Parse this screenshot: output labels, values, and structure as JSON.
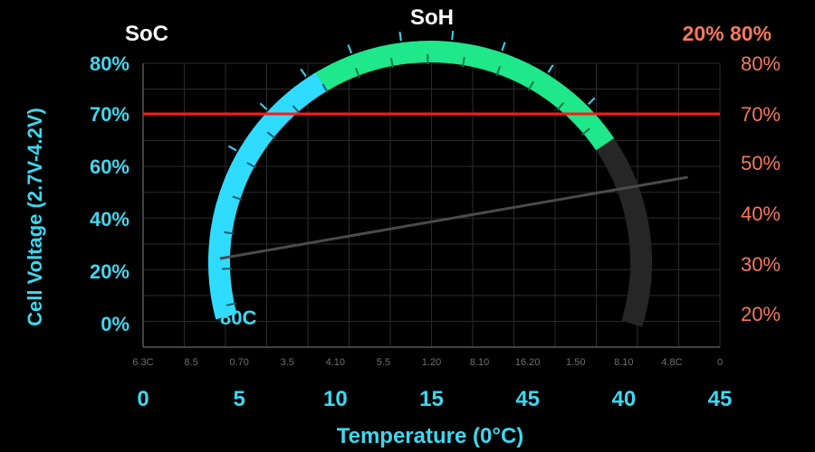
{
  "colors": {
    "background": "#000000",
    "grid": "#2b2b2b",
    "left_axis": "#3fd7ef",
    "right_axis": "#f47a5c",
    "arc_cyan": "#2fdcff",
    "arc_green": "#1ee88a",
    "arc_dark": "#262626",
    "threshold": "#ff1a1a",
    "trend": "#4a4a4a"
  },
  "chart_data": {
    "type": "line",
    "title": "SoH",
    "corner_labels": {
      "left": "SoC",
      "right": "20% 80%"
    },
    "gauge_label": "80C",
    "xlabel": "Temperature (0°C)",
    "ylabel": "Cell Voltage (2.7V-4.2V)",
    "x_tick_labels": [
      "0",
      "5",
      "10",
      "15",
      "45",
      "40",
      "45"
    ],
    "x_minor_tick_labels": [
      "6.3C",
      "8.5",
      "0.70",
      "3.5",
      "4.10",
      "5.5",
      "1.20",
      "8.10",
      "16.20",
      "1.50",
      "8.10",
      "4.8C",
      "0"
    ],
    "y_left_tick_labels": [
      "80%",
      "70%",
      "60%",
      "40%",
      "20%",
      "0%"
    ],
    "y_right_tick_labels": [
      "80%",
      "70%",
      "50%",
      "40%",
      "30%",
      "20%"
    ],
    "grid": true,
    "threshold_line": {
      "y_label": "70%"
    },
    "gauge": {
      "segments": [
        {
          "name": "cyan",
          "from_deg": 195,
          "to_deg": 121
        },
        {
          "name": "green",
          "from_deg": 121,
          "to_deg": 34
        },
        {
          "name": "dark",
          "from_deg": 34,
          "to_deg": -17
        }
      ],
      "tick_count": 16
    },
    "series": [
      {
        "x": [
          6,
          42.5
        ],
        "y": [
          20,
          45
        ]
      }
    ],
    "trend_x_range": [
      0,
      45
    ],
    "trend_y_range": [
      0,
      80
    ]
  }
}
